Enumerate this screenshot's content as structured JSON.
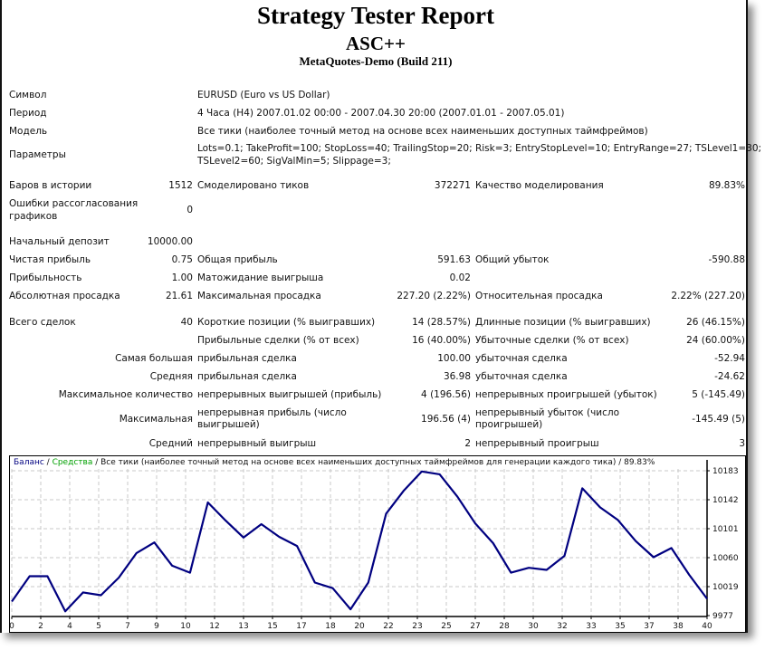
{
  "header": {
    "title": "Strategy Tester Report",
    "expert": "ASC++",
    "server": "MetaQuotes-Demo (Build 211)"
  },
  "info": {
    "symbol_label": "Символ",
    "symbol_value": "EURUSD (Euro vs US Dollar)",
    "period_label": "Период",
    "period_value": "4 Часа (H4) 2007.01.02 00:00 - 2007.04.30 20:00 (2007.01.01 - 2007.05.01)",
    "model_label": "Модель",
    "model_value": "Все тики (наиболее точный метод на основе всех наименьших доступных таймфреймов)",
    "params_label": "Параметры",
    "params_line1": "Lots=0.1; TakeProfit=100; StopLoss=40; TrailingStop=20; Risk=3; EntryStopLevel=10; EntryRange=27; TSLevel1=30;",
    "params_line2": "TSLevel2=60; SigValMin=5; Slippage=3;"
  },
  "stats": {
    "bars_label": "Баров в истории",
    "bars_value": "1512",
    "ticks_label": "Смоделировано тиков",
    "ticks_value": "372271",
    "quality_label": "Качество моделирования",
    "quality_value": "89.83%",
    "errors_label_1": "Ошибки рассогласования",
    "errors_label_2": "графиков",
    "errors_value": "0",
    "deposit_label": "Начальный депозит",
    "deposit_value": "10000.00",
    "net_profit_label": "Чистая прибыль",
    "net_profit_value": "0.75",
    "gross_profit_label": "Общая прибыль",
    "gross_profit_value": "591.63",
    "gross_loss_label": "Общий убыток",
    "gross_loss_value": "-590.88",
    "profit_factor_label": "Прибыльность",
    "profit_factor_value": "1.00",
    "expected_payoff_label": "Матожидание выигрыша",
    "expected_payoff_value": "0.02",
    "abs_dd_label": "Абсолютная просадка",
    "abs_dd_value": "21.61",
    "max_dd_label": "Максимальная просадка",
    "max_dd_value": "227.20 (2.22%)",
    "rel_dd_label": "Относительная просадка",
    "rel_dd_value": "2.22% (227.20)",
    "total_trades_label": "Всего сделок",
    "total_trades_value": "40",
    "short_label": "Короткие позиции (% выигравших)",
    "short_value": "14 (28.57%)",
    "long_label": "Длинные позиции (% выигравших)",
    "long_value": "26 (46.15%)",
    "profit_trades_label": "Прибыльные сделки (% от всех)",
    "profit_trades_value": "16 (40.00%)",
    "loss_trades_label": "Убыточные сделки (% от всех)",
    "loss_trades_value": "24 (60.00%)",
    "largest_label": "Самая большая",
    "largest_profit_label": "прибыльная сделка",
    "largest_profit_value": "100.00",
    "largest_loss_label": "убыточная сделка",
    "largest_loss_value": "-52.94",
    "average_label": "Средняя",
    "average_profit_label": "прибыльная сделка",
    "average_profit_value": "36.98",
    "average_loss_label": "убыточная сделка",
    "average_loss_value": "-24.62",
    "max_count_label": "Максимальное количество",
    "max_consec_wins_label": "непрерывных выигрышей (прибыль)",
    "max_consec_wins_value": "4 (196.56)",
    "max_consec_losses_label": "непрерывных проигрышей (убыток)",
    "max_consec_losses_value": "5 (-145.49)",
    "maximal_label": "Максимальная",
    "max_consec_profit_label_1": "непрерывная прибыль (число",
    "max_consec_profit_label_2": "выигрышей)",
    "max_consec_profit_value": "196.56 (4)",
    "max_consec_loss_label_1": "непрерывный убыток (число",
    "max_consec_loss_label_2": "проигрышей)",
    "max_consec_loss_value": "-145.49 (5)",
    "avg_label": "Средний",
    "avg_consec_wins_label": "непрерывный выигрыш",
    "avg_consec_wins_value": "2",
    "avg_consec_losses_label": "непрерывный проигрыш",
    "avg_consec_losses_value": "3"
  },
  "chart": {
    "legend_balance": "Баланс",
    "legend_sep1": " / ",
    "legend_equity": "Средства",
    "legend_rest": " / Все тики (наиболее точный метод на основе всех наименьших доступных таймфреймов для генерации каждого тика) / 89.83%",
    "colors": {
      "balance": "#000080",
      "equity": "#00a000",
      "grid": "#c8c8c8"
    }
  },
  "chart_data": {
    "type": "line",
    "title": "Баланс / Средства / Все тики (наиболее точный метод на основе всех наименьших доступных таймфреймов для генерации каждого тика) / 89.83%",
    "xlabel": "",
    "ylabel": "",
    "x_tick_labels": [
      "0",
      "2",
      "4",
      "5",
      "7",
      "9",
      "10",
      "12",
      "13",
      "15",
      "17",
      "18",
      "20",
      "22",
      "23",
      "25",
      "27",
      "28",
      "30",
      "32",
      "33",
      "35",
      "37",
      "38",
      "40"
    ],
    "y_tick_labels": [
      "10183",
      "10142",
      "10101",
      "10060",
      "10019",
      "9977"
    ],
    "ylim": [
      9977,
      10190
    ],
    "xlim": [
      0,
      40
    ],
    "grid": true,
    "legend_position": "top-left",
    "series": [
      {
        "name": "Баланс",
        "x": [
          0,
          1,
          2,
          3,
          4,
          5,
          6,
          7,
          8,
          9,
          10,
          11,
          12,
          13,
          14,
          15,
          16,
          17,
          18,
          19,
          20,
          21,
          22,
          23,
          24,
          25,
          26,
          27,
          28,
          29,
          30,
          31,
          32,
          33,
          34,
          35,
          36,
          37,
          38,
          39
        ],
        "values": [
          9997,
          10033,
          10033,
          9983,
          10010,
          10006,
          10031,
          10066,
          10081,
          10048,
          10038,
          10138,
          10112,
          10088,
          10107,
          10089,
          10076,
          10024,
          10016,
          9986,
          10024,
          10122,
          10155,
          10182,
          10178,
          10146,
          10108,
          10080,
          10038,
          10045,
          10042,
          10062,
          10158,
          10131,
          10113,
          10083,
          10060,
          10073,
          10035,
          10001
        ]
      }
    ]
  }
}
